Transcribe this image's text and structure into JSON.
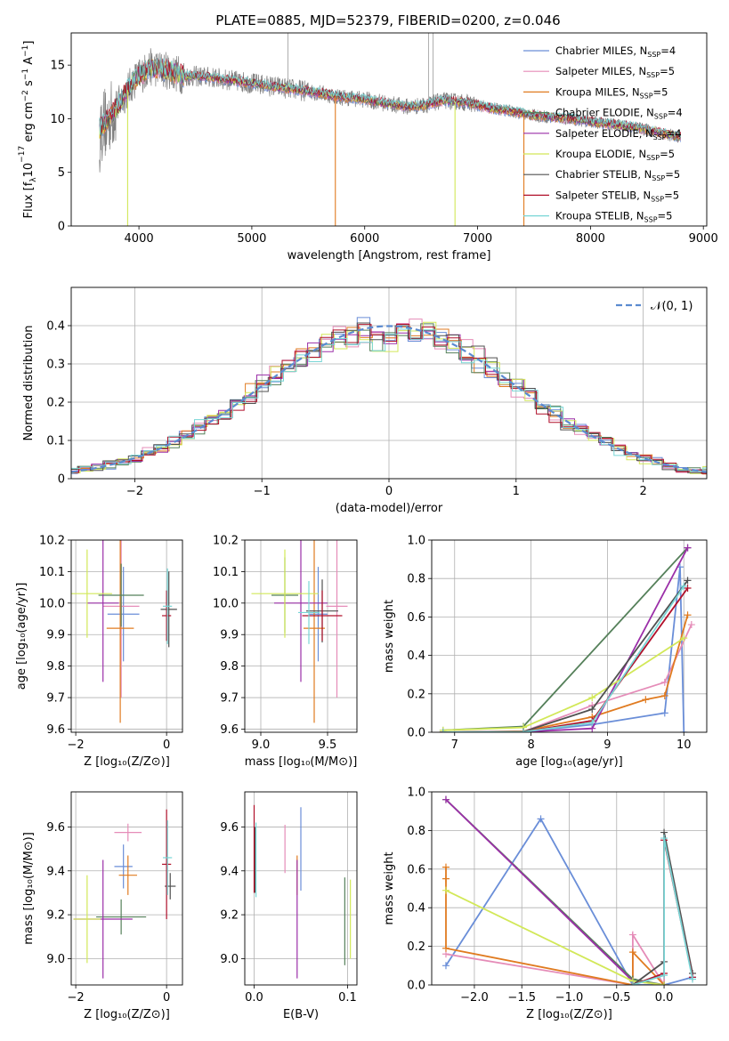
{
  "figure": {
    "title": "PLATE=0885, MJD=52379, FIBERID=0200, z=0.046"
  },
  "models": [
    {
      "key": "chabrier_miles",
      "legend": "Chabrier MILES, N",
      "nssp": "=4",
      "color": "#6a8ed8"
    },
    {
      "key": "salpeter_miles",
      "legend": "Salpeter MILES, N",
      "nssp": "=5",
      "color": "#e58cb8"
    },
    {
      "key": "kroupa_miles",
      "legend": "Kroupa MILES, N",
      "nssp": "=5",
      "color": "#e07b20"
    },
    {
      "key": "chabrier_elodie",
      "legend": "Chabrier ELODIE, N",
      "nssp": "=4",
      "color": "#55805a"
    },
    {
      "key": "salpeter_elodie",
      "legend": "Salpeter ELODIE, N",
      "nssp": "=4",
      "color": "#9b2fa8"
    },
    {
      "key": "kroupa_elodie",
      "legend": "Kroupa ELODIE, N",
      "nssp": "=5",
      "color": "#d2e858"
    },
    {
      "key": "chabrier_stelib",
      "legend": "Chabrier STELIB, N",
      "nssp": "=5",
      "color": "#505050"
    },
    {
      "key": "salpeter_stelib",
      "legend": "Salpeter STELIB, N",
      "nssp": "=5",
      "color": "#b0102a"
    },
    {
      "key": "kroupa_stelib",
      "legend": "Kroupa STELIB, N",
      "nssp": "=5",
      "color": "#78d6d6"
    }
  ],
  "chart_data": [
    {
      "id": "spectrum",
      "type": "line",
      "title": "PLATE=0885, MJD=52379, FIBERID=0200, z=0.046",
      "xlabel": "wavelength [Angstrom, rest frame]",
      "ylabel_parts": {
        "a": "Flux [f",
        "b": "λ",
        "c": "10",
        "d": "−17",
        "e": " erg cm",
        "f": "−2",
        "g": " s",
        "h": "−1",
        "i": " A",
        "j": "−1",
        "k": "]"
      },
      "xlim": [
        3400,
        9030
      ],
      "ylim": [
        0,
        18
      ],
      "xticks": [
        4000,
        5000,
        6000,
        7000,
        8000,
        9000
      ],
      "yticks": [
        0,
        5,
        10,
        15
      ],
      "observed_continuum": {
        "x": [
          3650,
          3800,
          3950,
          4100,
          4250,
          4400,
          4600,
          4800,
          5000,
          5200,
          5400,
          5600,
          5800,
          6000,
          6200,
          6400,
          6550,
          6700,
          6900,
          7100,
          7300,
          7500,
          7800,
          8100,
          8400,
          8700,
          8800
        ],
        "y": [
          9.0,
          11.0,
          13.5,
          14.8,
          14.5,
          14.0,
          13.9,
          13.6,
          13.3,
          13.0,
          12.7,
          12.4,
          12.0,
          11.8,
          11.4,
          11.1,
          11.3,
          11.7,
          11.5,
          11.0,
          10.7,
          10.3,
          10.0,
          9.6,
          9.2,
          8.5,
          8.3
        ]
      },
      "model_notches": [
        {
          "model": "kroupa_elodie",
          "x": 3900
        },
        {
          "model": "kroupa_miles",
          "x": 5740
        },
        {
          "model": "kroupa_elodie",
          "x": 6800
        },
        {
          "model": "kroupa_miles",
          "x": 7410
        }
      ],
      "observed_spikes_x": [
        5320,
        6565,
        6605
      ]
    },
    {
      "id": "residuals",
      "type": "histogram",
      "xlabel": "(data-model)/error",
      "ylabel": "Normed distribution",
      "xlim": [
        -2.5,
        2.5
      ],
      "ylim": [
        0,
        0.5
      ],
      "xticks": [
        -2,
        -1,
        0,
        1,
        2
      ],
      "yticks": [
        0,
        0.1,
        0.2,
        0.3,
        0.4
      ],
      "legend_entry": "𝒩(0, 1)",
      "bin_width": 0.1,
      "gaussian_mean": 0,
      "gaussian_sigma": 1
    },
    {
      "id": "age_vs_Z",
      "type": "errorbar",
      "xlabel": "Z [log₁₀(Z/Z⊙)]",
      "ylabel": "age  [log₁₀(age/yr)]",
      "xlim": [
        -2.1,
        0.35
      ],
      "ylim": [
        9.59,
        10.2
      ],
      "xticks": [
        -2,
        0
      ],
      "yticks": [
        9.6,
        9.7,
        9.8,
        9.9,
        10.0,
        10.1,
        10.2
      ],
      "points": [
        {
          "model": "chabrier_miles",
          "x": -0.95,
          "y": 9.965,
          "xerr": 0.35,
          "yerr": 0.15
        },
        {
          "model": "salpeter_miles",
          "x": -1.0,
          "y": 9.99,
          "xerr": 0.4,
          "yerr": 0.29
        },
        {
          "model": "kroupa_miles",
          "x": -1.02,
          "y": 9.92,
          "xerr": 0.3,
          "yerr": 0.3
        },
        {
          "model": "chabrier_elodie",
          "x": -1.0,
          "y": 10.025,
          "xerr": 0.5,
          "yerr": 0.1
        },
        {
          "model": "salpeter_elodie",
          "x": -1.4,
          "y": 10.0,
          "xerr": 0.35,
          "yerr": 0.25
        },
        {
          "model": "kroupa_elodie",
          "x": -1.75,
          "y": 10.03,
          "xerr": 0.55,
          "yerr": 0.14
        },
        {
          "model": "chabrier_stelib",
          "x": 0.05,
          "y": 9.98,
          "xerr": 0.18,
          "yerr": 0.12
        },
        {
          "model": "salpeter_stelib",
          "x": 0.0,
          "y": 9.96,
          "xerr": 0.1,
          "yerr": 0.08
        },
        {
          "model": "kroupa_stelib",
          "x": 0.02,
          "y": 9.99,
          "xerr": 0.1,
          "yerr": 0.12
        }
      ]
    },
    {
      "id": "age_vs_mass",
      "type": "errorbar",
      "xlabel": "mass [log₁₀(M/M⊙)]",
      "ylabel": "",
      "xlim": [
        8.88,
        9.72
      ],
      "ylim": [
        9.59,
        10.2
      ],
      "xticks": [
        9.0,
        9.5
      ],
      "yticks": [
        9.6,
        9.7,
        9.8,
        9.9,
        10.0,
        10.1,
        10.2
      ],
      "points": [
        {
          "model": "chabrier_miles",
          "x": 9.43,
          "y": 9.965,
          "xerr": 0.07,
          "yerr": 0.15
        },
        {
          "model": "salpeter_miles",
          "x": 9.57,
          "y": 9.99,
          "xerr": 0.08,
          "yerr": 0.29
        },
        {
          "model": "kroupa_miles",
          "x": 9.4,
          "y": 9.92,
          "xerr": 0.08,
          "yerr": 0.3
        },
        {
          "model": "chabrier_elodie",
          "x": 9.18,
          "y": 10.025,
          "xerr": 0.1,
          "yerr": 0.12
        },
        {
          "model": "salpeter_elodie",
          "x": 9.3,
          "y": 10.0,
          "xerr": 0.2,
          "yerr": 0.25
        },
        {
          "model": "kroupa_elodie",
          "x": 9.18,
          "y": 10.03,
          "xerr": 0.25,
          "yerr": 0.14
        },
        {
          "model": "chabrier_stelib",
          "x": 9.46,
          "y": 9.975,
          "xerr": 0.12,
          "yerr": 0.1
        },
        {
          "model": "salpeter_stelib",
          "x": 9.46,
          "y": 9.96,
          "xerr": 0.15,
          "yerr": 0.08
        },
        {
          "model": "kroupa_stelib",
          "x": 9.36,
          "y": 9.97,
          "xerr": 0.08,
          "yerr": 0.1
        }
      ]
    },
    {
      "id": "massweight_vs_age",
      "type": "line",
      "xlabel": "age  [log₁₀(age/yr)]",
      "ylabel": "mass weight",
      "xlim": [
        6.7,
        10.3
      ],
      "ylim": [
        0,
        1.0
      ],
      "xticks": [
        7,
        8,
        9,
        10
      ],
      "yticks": [
        0.0,
        0.2,
        0.4,
        0.6,
        0.8,
        1.0
      ],
      "series": [
        {
          "model": "chabrier_miles",
          "x": [
            6.85,
            7.9,
            8.8,
            9.75,
            9.95,
            10.0
          ],
          "y": [
            0.0,
            0.003,
            0.04,
            0.1,
            0.86,
            0.0
          ]
        },
        {
          "model": "salpeter_miles",
          "x": [
            6.85,
            7.9,
            8.8,
            9.75,
            10.1
          ],
          "y": [
            0.0,
            0.003,
            0.14,
            0.26,
            0.56
          ]
        },
        {
          "model": "kroupa_miles",
          "x": [
            6.85,
            7.9,
            8.8,
            9.5,
            9.75,
            10.05
          ],
          "y": [
            0.0,
            0.005,
            0.08,
            0.17,
            0.19,
            0.61
          ]
        },
        {
          "model": "chabrier_elodie",
          "x": [
            6.85,
            7.9,
            10.05
          ],
          "y": [
            0.01,
            0.03,
            0.96
          ]
        },
        {
          "model": "salpeter_elodie",
          "x": [
            6.85,
            7.9,
            8.8,
            10.05
          ],
          "y": [
            0.0,
            0.002,
            0.02,
            0.96
          ]
        },
        {
          "model": "kroupa_elodie",
          "x": [
            6.85,
            7.9,
            8.8,
            10.0
          ],
          "y": [
            0.01,
            0.025,
            0.18,
            0.49
          ]
        },
        {
          "model": "chabrier_stelib",
          "x": [
            6.85,
            7.9,
            8.8,
            10.05
          ],
          "y": [
            0.0,
            0.003,
            0.12,
            0.79
          ]
        },
        {
          "model": "salpeter_stelib",
          "x": [
            6.85,
            7.9,
            8.8,
            10.05
          ],
          "y": [
            0.0,
            0.002,
            0.06,
            0.75
          ]
        },
        {
          "model": "kroupa_stelib",
          "x": [
            6.85,
            7.9,
            8.8,
            10.0
          ],
          "y": [
            0.0,
            0.002,
            0.05,
            0.76
          ]
        }
      ]
    },
    {
      "id": "mass_vs_Z",
      "type": "errorbar",
      "xlabel": "Z [log₁₀(Z/Z⊙)]",
      "ylabel": "mass [log₁₀(M/M⊙)]",
      "xlim": [
        -2.1,
        0.35
      ],
      "ylim": [
        8.88,
        9.76
      ],
      "xticks": [
        -2,
        0
      ],
      "yticks": [
        9.0,
        9.2,
        9.4,
        9.6
      ],
      "points": [
        {
          "model": "chabrier_miles",
          "x": -0.95,
          "y": 9.42,
          "xerr": 0.2,
          "yerr": 0.1
        },
        {
          "model": "salpeter_miles",
          "x": -0.85,
          "y": 9.575,
          "xerr": 0.3,
          "yerr": 0.04
        },
        {
          "model": "kroupa_miles",
          "x": -0.85,
          "y": 9.38,
          "xerr": 0.2,
          "yerr": 0.09
        },
        {
          "model": "chabrier_elodie",
          "x": -1.0,
          "y": 9.19,
          "xerr": 0.55,
          "yerr": 0.08
        },
        {
          "model": "salpeter_elodie",
          "x": -1.4,
          "y": 9.18,
          "xerr": 0.65,
          "yerr": 0.27
        },
        {
          "model": "kroupa_elodie",
          "x": -1.75,
          "y": 9.18,
          "xerr": 0.3,
          "yerr": 0.2
        },
        {
          "model": "chabrier_stelib",
          "x": 0.08,
          "y": 9.33,
          "xerr": 0.12,
          "yerr": 0.06
        },
        {
          "model": "salpeter_stelib",
          "x": 0.0,
          "y": 9.43,
          "xerr": 0.1,
          "yerr": 0.25
        },
        {
          "model": "kroupa_stelib",
          "x": 0.02,
          "y": 9.46,
          "xerr": 0.1,
          "yerr": 0.17
        }
      ]
    },
    {
      "id": "mass_vs_EBV",
      "type": "errorbar",
      "xlabel": "E(B-V)",
      "ylabel": "",
      "xlim": [
        -0.01,
        0.11
      ],
      "ylim": [
        8.88,
        9.76
      ],
      "xticks": [
        0.0,
        0.1
      ],
      "yticks": [
        9.0,
        9.2,
        9.4,
        9.6
      ],
      "points": [
        {
          "model": "chabrier_miles",
          "x": 0.05,
          "y": 9.5,
          "xerr": 0.0,
          "yerr": 0.19
        },
        {
          "model": "salpeter_miles",
          "x": 0.033,
          "y": 9.5,
          "xerr": 0.0,
          "yerr": 0.11
        },
        {
          "model": "kroupa_miles",
          "x": 0.046,
          "y": 9.38,
          "xerr": 0.0,
          "yerr": 0.09
        },
        {
          "model": "chabrier_elodie",
          "x": 0.097,
          "y": 9.17,
          "xerr": 0.0,
          "yerr": 0.2
        },
        {
          "model": "salpeter_elodie",
          "x": 0.046,
          "y": 9.18,
          "xerr": 0.0,
          "yerr": 0.27
        },
        {
          "model": "kroupa_elodie",
          "x": 0.103,
          "y": 9.18,
          "xerr": 0.0,
          "yerr": 0.18
        },
        {
          "model": "chabrier_stelib",
          "x": 0.001,
          "y": 9.45,
          "xerr": 0.0,
          "yerr": 0.15
        },
        {
          "model": "salpeter_stelib",
          "x": 0.0,
          "y": 9.5,
          "xerr": 0.0,
          "yerr": 0.2
        },
        {
          "model": "kroupa_stelib",
          "x": 0.002,
          "y": 9.45,
          "xerr": 0.0,
          "yerr": 0.17
        }
      ]
    },
    {
      "id": "massweight_vs_Z",
      "type": "line",
      "xlabel": "Z [log₁₀(Z/Z⊙)]",
      "ylabel": "mass weight",
      "xlim": [
        -2.45,
        0.45
      ],
      "ylim": [
        0,
        1.0
      ],
      "xticks": [
        -2.0,
        -1.5,
        -1.0,
        -0.5,
        0.0
      ],
      "yticks": [
        0.0,
        0.2,
        0.4,
        0.6,
        0.8,
        1.0
      ],
      "series": [
        {
          "model": "chabrier_miles",
          "x": [
            -2.3,
            -1.3,
            -0.33,
            0.0,
            0.3
          ],
          "y": [
            0.1,
            0.86,
            0.0,
            0.0,
            0.04
          ]
        },
        {
          "model": "salpeter_miles",
          "x": [
            -2.3,
            -0.33,
            -0.33,
            0.0,
            0.0
          ],
          "y": [
            0.16,
            0.0,
            0.26,
            0.0,
            0.12
          ]
        },
        {
          "model": "kroupa_miles",
          "x": [
            -2.3,
            -2.3,
            -2.3,
            -0.33,
            -0.33,
            0.0
          ],
          "y": [
            0.61,
            0.55,
            0.19,
            0.0,
            0.17,
            0.0
          ]
        },
        {
          "model": "chabrier_elodie",
          "x": [
            -2.3,
            -0.33,
            0.0
          ],
          "y": [
            0.96,
            0.03,
            0.0
          ]
        },
        {
          "model": "salpeter_elodie",
          "x": [
            -2.3,
            -0.33,
            0.0
          ],
          "y": [
            0.96,
            0.02,
            0.0
          ]
        },
        {
          "model": "kroupa_elodie",
          "x": [
            -2.3,
            -0.33,
            0.0
          ],
          "y": [
            0.49,
            0.02,
            0.0
          ]
        },
        {
          "model": "chabrier_stelib",
          "x": [
            -0.33,
            0.0,
            0.0,
            0.3
          ],
          "y": [
            0.0,
            0.12,
            0.79,
            0.06
          ]
        },
        {
          "model": "salpeter_stelib",
          "x": [
            -0.33,
            0.0,
            0.0,
            0.3
          ],
          "y": [
            0.0,
            0.06,
            0.75,
            0.04
          ]
        },
        {
          "model": "kroupa_stelib",
          "x": [
            -0.33,
            0.0,
            0.0,
            0.3
          ],
          "y": [
            0.0,
            0.05,
            0.76,
            0.03
          ]
        }
      ]
    }
  ]
}
